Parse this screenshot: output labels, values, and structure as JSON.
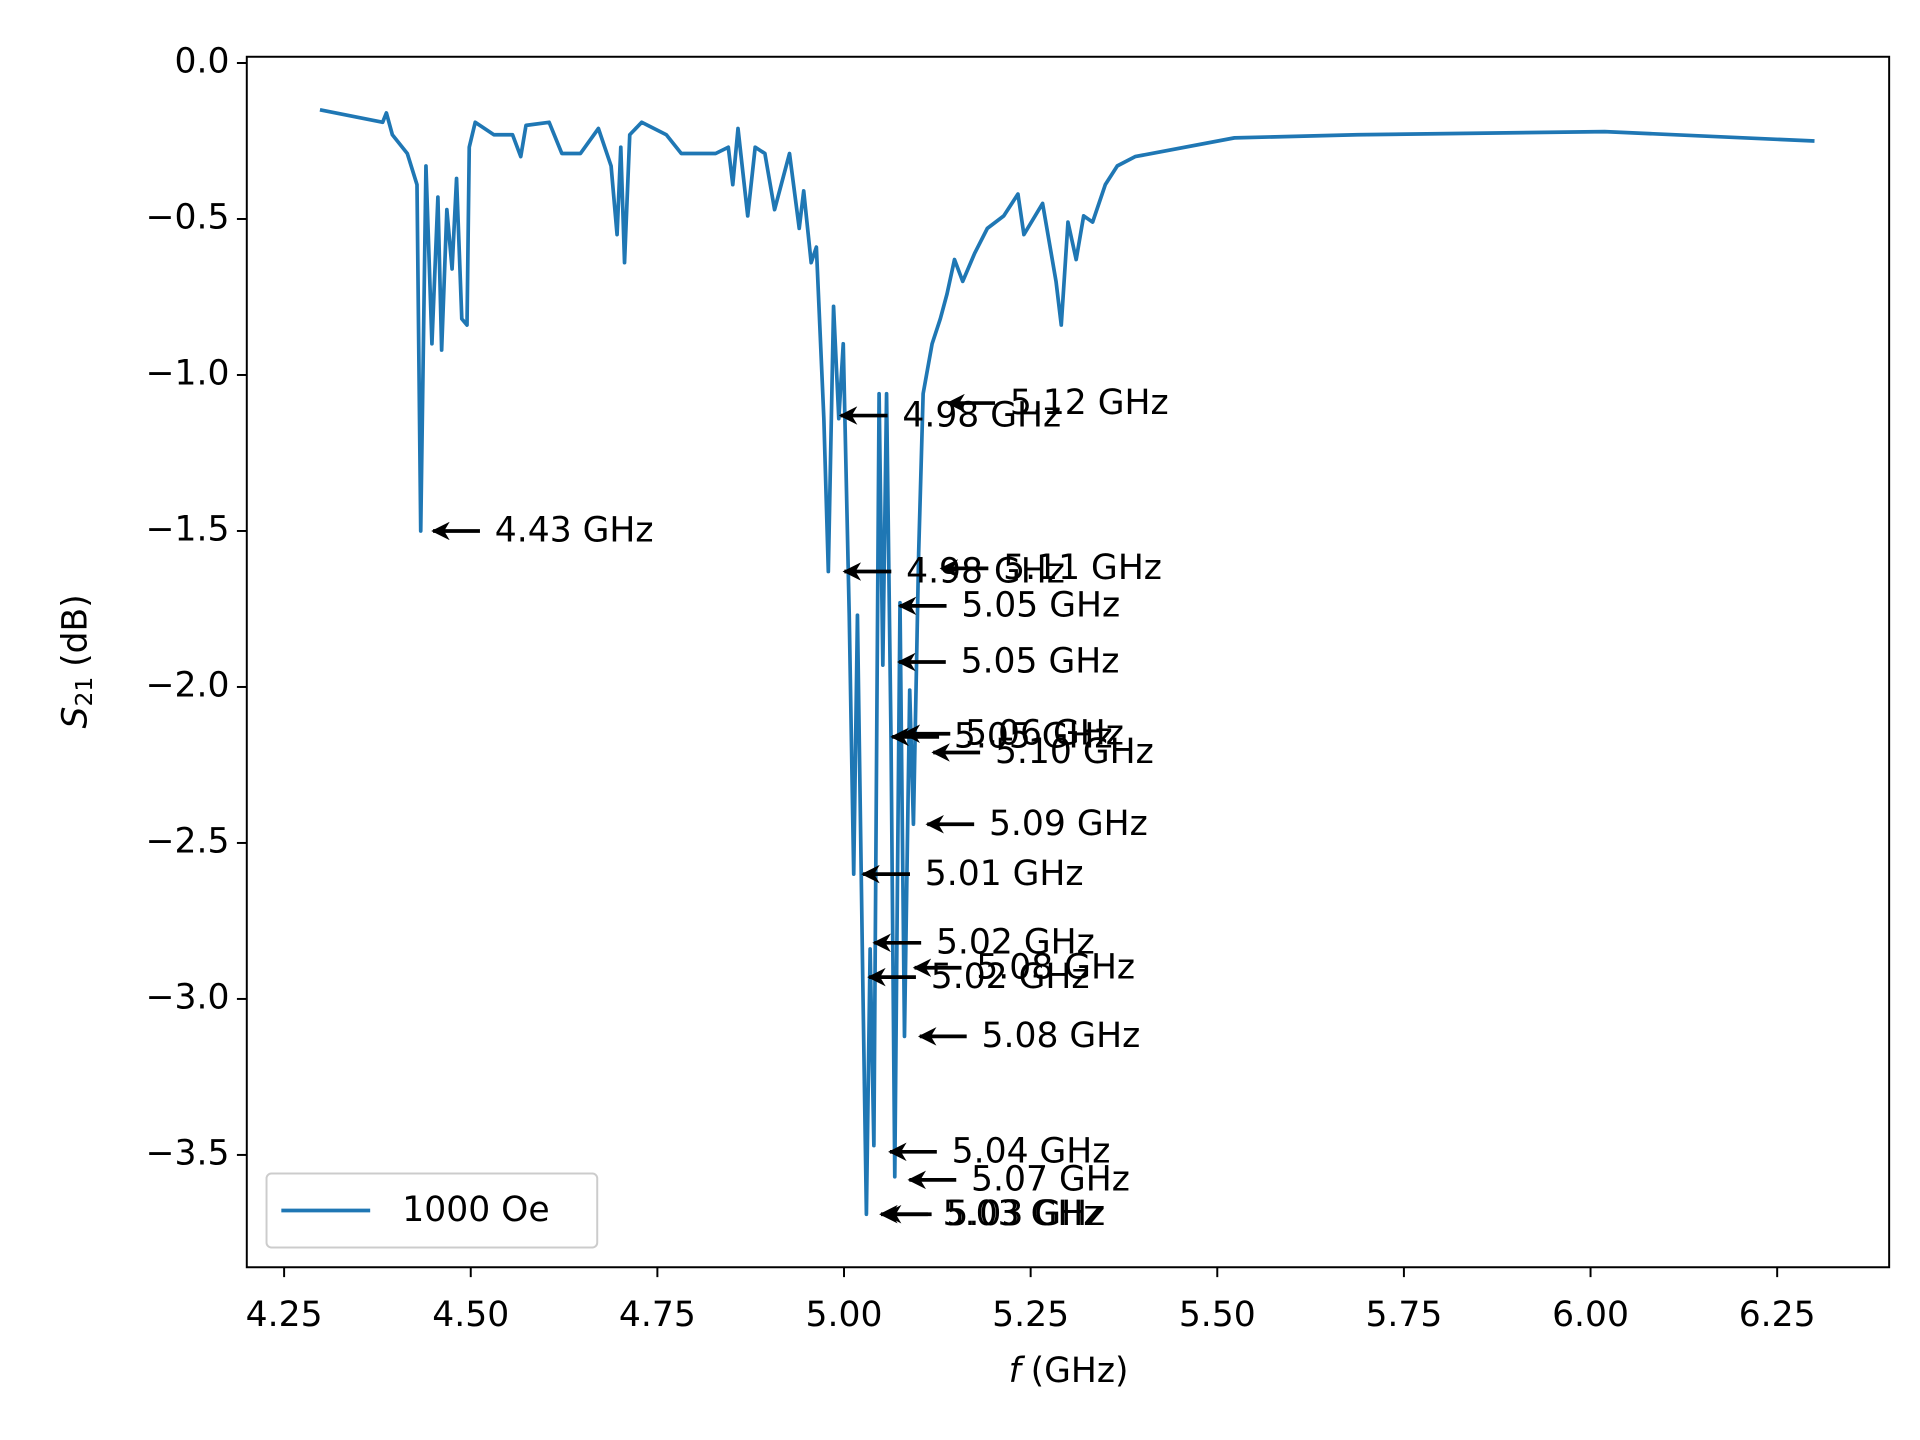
{
  "chart_data": {
    "type": "line",
    "xlabel": {
      "symbol": "f",
      "text": "(GHz)"
    },
    "ylabel": {
      "symbol": "S",
      "subscript": "21",
      "text": "(dB)"
    },
    "xlim": [
      4.2,
      6.4
    ],
    "ylim": [
      -3.86,
      0.02
    ],
    "xticks": [
      4.25,
      {
        "value": 4.5,
        "label": "4.50"
      },
      4.75,
      {
        "value": 5,
        "label": "5.00"
      },
      5.25,
      {
        "value": 5.5,
        "label": "5.50"
      },
      5.75,
      {
        "value": 6,
        "label": "6.00"
      },
      6.25
    ],
    "yticks": [
      {
        "value": 0,
        "label": "0.0"
      },
      {
        "value": -0.5,
        "label": "−0.5"
      },
      {
        "value": -1,
        "label": "−1.0"
      },
      {
        "value": -1.5,
        "label": "−1.5"
      },
      {
        "value": -2,
        "label": "−2.0"
      },
      {
        "value": -2.5,
        "label": "−2.5"
      },
      {
        "value": -3,
        "label": "−3.0"
      },
      {
        "value": -3.5,
        "label": "−3.5"
      }
    ],
    "legend": "lower left",
    "x": [
      4.298,
      4.382,
      4.387,
      4.395,
      4.415,
      4.428,
      4.433,
      4.44,
      4.448,
      4.456,
      4.461,
      4.468,
      4.475,
      4.481,
      4.488,
      4.495,
      4.498,
      4.506,
      4.531,
      4.556,
      4.567,
      4.574,
      4.605,
      4.622,
      4.647,
      4.671,
      4.688,
      4.696,
      4.701,
      4.706,
      4.713,
      4.729,
      4.762,
      4.782,
      4.828,
      4.845,
      4.851,
      4.858,
      4.871,
      4.881,
      4.894,
      4.907,
      4.927,
      4.94,
      4.946,
      4.956,
      4.963,
      4.973,
      4.979,
      4.986,
      4.993,
      4.999,
      5.007,
      5.013,
      5.018,
      5.025,
      5.03,
      5.035,
      5.04,
      5.047,
      5.052,
      5.057,
      5.063,
      5.068,
      5.075,
      5.081,
      5.088,
      5.093,
      5.1,
      5.106,
      5.118,
      5.129,
      5.138,
      5.148,
      5.159,
      5.175,
      5.192,
      5.214,
      5.233,
      5.241,
      5.266,
      5.284,
      5.291,
      5.3,
      5.311,
      5.321,
      5.333,
      5.35,
      5.366,
      5.39,
      5.523,
      5.688,
      6.019,
      6.3
    ],
    "series": [
      {
        "name": "1000 Oe",
        "color": "#1f77b4",
        "values": [
          -0.15,
          -0.19,
          -0.16,
          -0.23,
          -0.29,
          -0.39,
          -1.5,
          -0.33,
          -0.9,
          -0.43,
          -0.92,
          -0.47,
          -0.66,
          -0.37,
          -0.82,
          -0.84,
          -0.27,
          -0.19,
          -0.23,
          -0.23,
          -0.3,
          -0.2,
          -0.19,
          -0.29,
          -0.29,
          -0.21,
          -0.33,
          -0.55,
          -0.27,
          -0.64,
          -0.23,
          -0.19,
          -0.23,
          -0.29,
          -0.29,
          -0.27,
          -0.39,
          -0.21,
          -0.49,
          -0.27,
          -0.29,
          -0.47,
          -0.29,
          -0.53,
          -0.41,
          -0.64,
          -0.59,
          -1.14,
          -1.63,
          -0.78,
          -1.14,
          -0.9,
          -1.77,
          -2.6,
          -1.77,
          -2.92,
          -3.69,
          -2.84,
          -3.47,
          -1.06,
          -1.93,
          -1.06,
          -2.17,
          -3.57,
          -1.73,
          -3.12,
          -2.01,
          -2.44,
          -1.57,
          -1.06,
          -0.9,
          -0.82,
          -0.74,
          -0.63,
          -0.7,
          -0.61,
          -0.53,
          -0.49,
          -0.42,
          -0.55,
          -0.45,
          -0.7,
          -0.84,
          -0.51,
          -0.63,
          -0.49,
          -0.51,
          -0.39,
          -0.33,
          -0.3,
          -0.24,
          -0.23,
          -0.22,
          -0.25
        ]
      }
    ],
    "annotations": [
      {
        "text": "4.43 GHz",
        "x": 4.433,
        "y": -1.5
      },
      {
        "text": "4.98 GHz",
        "x": 4.979,
        "y": -1.13
      },
      {
        "text": "5.12 GHz",
        "x": 5.123,
        "y": -1.09
      },
      {
        "text": "4.98 GHz",
        "x": 4.984,
        "y": -1.63
      },
      {
        "text": "5.11 GHz",
        "x": 5.114,
        "y": -1.62
      },
      {
        "text": "5.05 GHz",
        "x": 5.058,
        "y": -1.74
      },
      {
        "text": "5.05 GHz",
        "x": 5.057,
        "y": -1.92
      },
      {
        "text": "5.06 GHz",
        "x": 5.063,
        "y": -2.15
      },
      {
        "text": "5.05 GHz",
        "x": 5.048,
        "y": -2.16
      },
      {
        "text": "5.10 GHz",
        "x": 5.103,
        "y": -2.21
      },
      {
        "text": "5.09 GHz",
        "x": 5.095,
        "y": -2.44
      },
      {
        "text": "5.01 GHz",
        "x": 5.009,
        "y": -2.6
      },
      {
        "text": "5.02 GHz",
        "x": 5.024,
        "y": -2.82
      },
      {
        "text": "5.08 GHz",
        "x": 5.078,
        "y": -2.9
      },
      {
        "text": "5.02 GHz",
        "x": 5.017,
        "y": -2.93
      },
      {
        "text": "5.08 GHz",
        "x": 5.085,
        "y": -3.12
      },
      {
        "text": "5.04 GHz",
        "x": 5.045,
        "y": -3.49
      },
      {
        "text": "5.07 GHz",
        "x": 5.071,
        "y": -3.58
      },
      {
        "text": "5.03 GHz",
        "x": 5.033,
        "y": -3.69
      },
      {
        "text": "5.03 GHz",
        "x": 5.038,
        "y": -3.69
      }
    ]
  }
}
